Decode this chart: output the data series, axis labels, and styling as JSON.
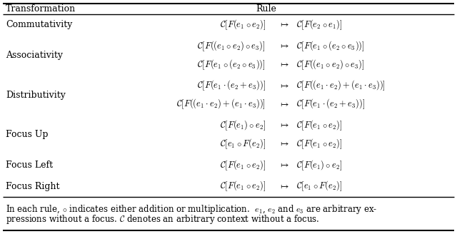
{
  "figsize": [
    6.4,
    3.28
  ],
  "dpi": 100,
  "background": "#ffffff",
  "header": [
    "Transformation",
    "Rule"
  ],
  "rows": [
    {
      "name": "Commutativity",
      "entries": [
        [
          "$\\mathcal{C}[F(e_1 \\circ e_2)]$",
          "$\\mapsto$",
          "$\\mathcal{C}[F(e_2 \\circ e_1)]$"
        ]
      ]
    },
    {
      "name": "Associativity",
      "entries": [
        [
          "$\\mathcal{C}[F((e_1 \\circ e_2) \\circ e_3)]$",
          "$\\mapsto$",
          "$\\mathcal{C}[F(e_1 \\circ (e_2 \\circ e_3))]$"
        ],
        [
          "$\\mathcal{C}[F(e_1 \\circ (e_2 \\circ e_3))]$",
          "$\\mapsto$",
          "$\\mathcal{C}[F((e_1 \\circ e_2) \\circ e_3)]$"
        ]
      ]
    },
    {
      "name": "Distributivity",
      "entries": [
        [
          "$\\mathcal{C}[F(e_1 \\cdot (e_2 + e_3))]$",
          "$\\mapsto$",
          "$\\mathcal{C}[F((e_1 \\cdot e_2) + (e_1 \\cdot e_3))]$"
        ],
        [
          "$\\mathcal{C}[F((e_1 \\cdot e_2) + (e_1 \\cdot e_3))]$",
          "$\\mapsto$",
          "$\\mathcal{C}[F(e_1 \\cdot (e_2 + e_3))]$"
        ]
      ]
    },
    {
      "name": "Focus Up",
      "entries": [
        [
          "$\\mathcal{C}[F(e_1) \\circ e_2]$",
          "$\\mapsto$",
          "$\\mathcal{C}[F(e_1 \\circ e_2)]$"
        ],
        [
          "$\\mathcal{C}[e_1 \\circ F(e_2)]$",
          "$\\mapsto$",
          "$\\mathcal{C}[F(e_1 \\circ e_2)]$"
        ]
      ]
    },
    {
      "name": "Focus Left",
      "entries": [
        [
          "$\\mathcal{C}[F(e_1 \\circ e_2)]$",
          "$\\mapsto$",
          "$\\mathcal{C}[F(e_1) \\circ e_2]$"
        ]
      ]
    },
    {
      "name": "Focus Right",
      "entries": [
        [
          "$\\mathcal{C}[F(e_1 \\circ e_2)]$",
          "$\\mapsto$",
          "$\\mathcal{C}[e_1 \\circ F(e_2)]$"
        ]
      ]
    }
  ],
  "footnote_line1": "In each rule, $\\circ$ indicates either addition or multiplication.  $e_1$, $e_2$ and $e_3$ are arbitrary ex-",
  "footnote_line2": "pressions without a focus. $\\mathcal{C}$ denotes an arbitrary context without a focus.",
  "fontsize": 9.0,
  "math_fontsize": 9.0,
  "footnote_fontsize": 8.5
}
